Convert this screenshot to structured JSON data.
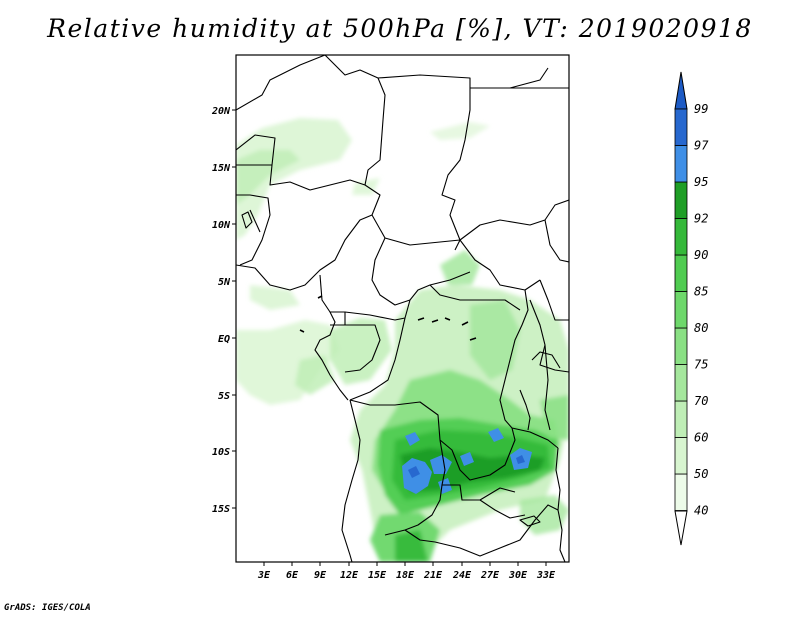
{
  "title": "Relative humidity at 500hPa [%], VT: 2019020918",
  "credit": "GrADS: IGES/COLA",
  "map": {
    "lat_labels": [
      "20N",
      "15N",
      "10N",
      "5N",
      "EQ",
      "5S",
      "10S",
      "15S"
    ],
    "lon_labels": [
      "3E",
      "6E",
      "9E",
      "12E",
      "15E",
      "18E",
      "21E",
      "24E",
      "27E",
      "30E",
      "33E"
    ]
  },
  "colorbar": {
    "labels": [
      "40",
      "50",
      "60",
      "70",
      "75",
      "80",
      "85",
      "90",
      "92",
      "95",
      "97",
      "99"
    ],
    "colors": [
      "#edfbe9",
      "#d8f5d0",
      "#bfeeb6",
      "#a5e79d",
      "#8ae084",
      "#6ed86b",
      "#50cc51",
      "#35b93a",
      "#1f9e26",
      "#3f8fe6",
      "#2768cf"
    ],
    "top_color": "#1d5bc5"
  },
  "chart_data": {
    "type": "heatmap",
    "title": "Relative humidity at 500hPa [%], VT: 2019020918",
    "variable": "Relative humidity at 500hPa",
    "units": "%",
    "valid_time": "2019020918",
    "x_axis": [
      "3E",
      "6E",
      "9E",
      "12E",
      "15E",
      "18E",
      "21E",
      "24E",
      "27E",
      "30E",
      "33E"
    ],
    "y_axis": [
      "20N",
      "15N",
      "10N",
      "5N",
      "EQ",
      "5S",
      "10S",
      "15S"
    ],
    "levels": [
      40,
      50,
      60,
      70,
      75,
      80,
      85,
      90,
      92,
      95,
      97,
      99
    ]
  }
}
